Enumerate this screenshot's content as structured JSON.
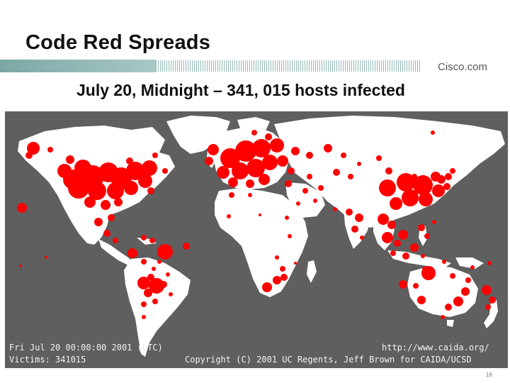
{
  "slide": {
    "title": "Code Red Spreads",
    "subtitle": "July 20, Midnight – 341, 015 hosts infected",
    "logo": "Cisco.com",
    "page_number": "16"
  },
  "map": {
    "timestamp": "Fri Jul 20 00:00:00 2001 (UTC)",
    "victims": "Victims: 341015",
    "source_url": "http://www.caida.org/",
    "copyright": "Copyright (C) 2001 UC Regents, Jeff Brown for CAIDA/UCSD",
    "colors": {
      "ocean": "#5f5f5f",
      "land": "#ffffff",
      "infection": "#ff0000"
    }
  }
}
